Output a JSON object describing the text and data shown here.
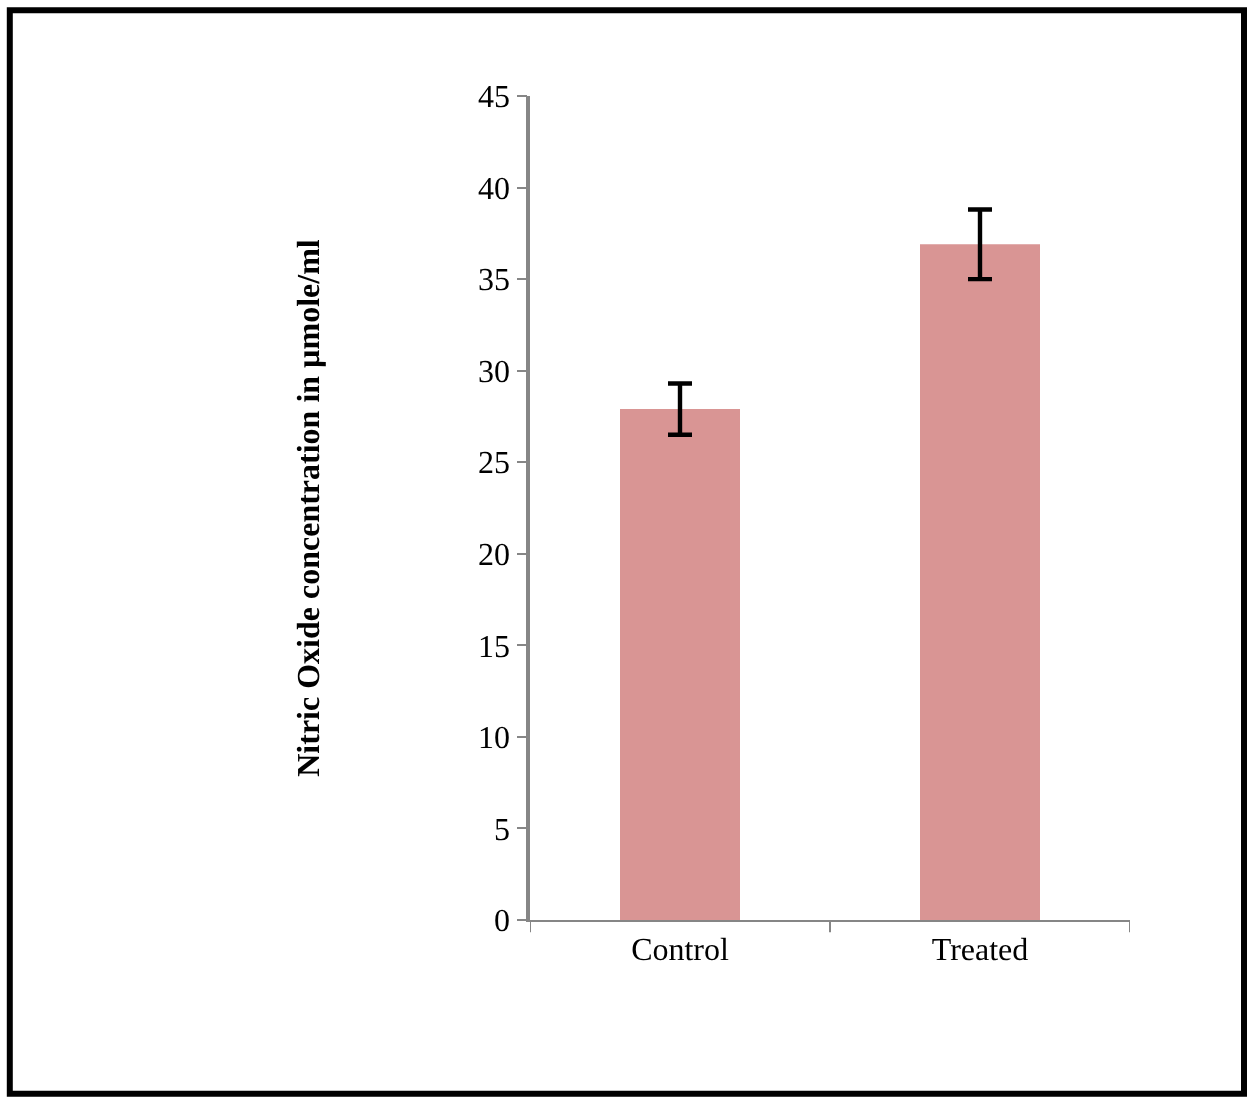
{
  "chart_data": {
    "type": "bar",
    "ylabel": "Nitric Oxide concentration in µmole/ml",
    "categories": [
      "Control",
      "Treated"
    ],
    "values": [
      27.9,
      36.9
    ],
    "errors": [
      1.4,
      1.9
    ],
    "color": "#d99594",
    "ylim": [
      0,
      45
    ],
    "yticks": [
      0,
      5,
      10,
      15,
      20,
      25,
      30,
      35,
      40,
      45
    ],
    "legend": false
  }
}
